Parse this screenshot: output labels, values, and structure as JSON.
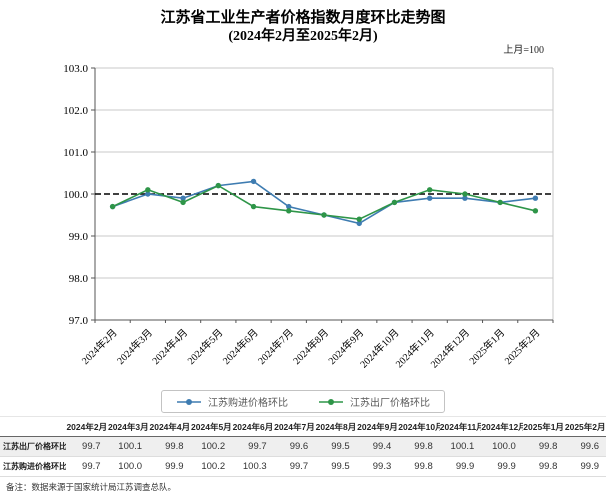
{
  "title": {
    "line1": "江苏省工业生产者价格指数月度环比走势图",
    "line2": "(2024年2月至2025年2月)"
  },
  "unit_note": "上月=100",
  "chart_data": {
    "type": "line",
    "categories": [
      "2024年2月",
      "2024年3月",
      "2024年4月",
      "2024年5月",
      "2024年6月",
      "2024年7月",
      "2024年8月",
      "2024年9月",
      "2024年10月",
      "2024年11月",
      "2024年12月",
      "2025年1月",
      "2025年2月"
    ],
    "series": [
      {
        "name": "江苏购进价格环比",
        "color": "#3e7cb1",
        "values": [
          99.7,
          100.0,
          99.9,
          100.2,
          100.3,
          99.7,
          99.5,
          99.3,
          99.8,
          99.9,
          99.9,
          99.8,
          99.9
        ]
      },
      {
        "name": "江苏出厂价格环比",
        "color": "#2e9548",
        "values": [
          99.7,
          100.1,
          99.8,
          100.2,
          99.7,
          99.6,
          99.5,
          99.4,
          99.8,
          100.1,
          100.0,
          99.8,
          99.6
        ]
      }
    ],
    "title": "江苏省工业生产者价格指数月度环比走势图 (2024年2月至2025年2月)",
    "xlabel": "",
    "ylabel": "",
    "ylim": [
      97.0,
      103.0
    ],
    "ytick_step": 1.0,
    "reference_line": 100.0,
    "reference_note": "上月=100",
    "grid": true,
    "legend_position": "bottom"
  },
  "table": {
    "columns": [
      "2024年2月",
      "2024年3月",
      "2024年4月",
      "2024年5月",
      "2024年6月",
      "2024年7月",
      "2024年8月",
      "2024年9月",
      "2024年10月",
      "2024年11月",
      "2024年12月",
      "2025年1月",
      "2025年2月"
    ],
    "rows": [
      {
        "label": "江苏出厂价格环比",
        "values": [
          "99.7",
          "100.1",
          "99.8",
          "100.2",
          "99.7",
          "99.6",
          "99.5",
          "99.4",
          "99.8",
          "100.1",
          "100.0",
          "99.8",
          "99.6"
        ]
      },
      {
        "label": "江苏购进价格环比",
        "values": [
          "99.7",
          "100.0",
          "99.9",
          "100.2",
          "100.3",
          "99.7",
          "99.5",
          "99.3",
          "99.8",
          "99.9",
          "99.9",
          "99.8",
          "99.9"
        ]
      }
    ]
  },
  "footnote": "备注：数据来源于国家统计局江苏调查总队。"
}
